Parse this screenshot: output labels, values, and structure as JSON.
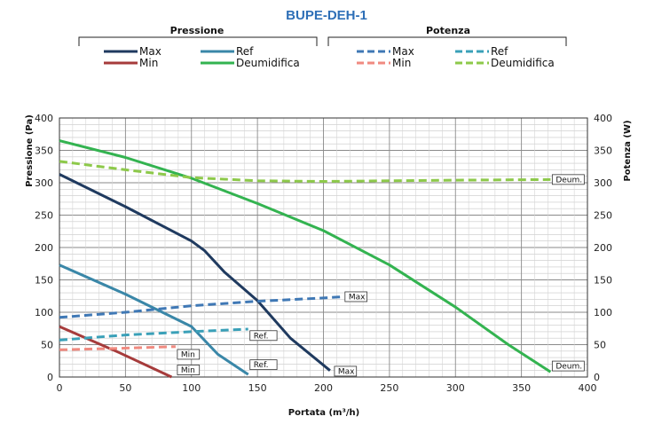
{
  "chart_data": {
    "type": "line",
    "title": "BUPE-DEH-1",
    "legend": {
      "groups": [
        "Pressione",
        "Potenza"
      ],
      "pressure_entries": [
        "Max",
        "Ref",
        "Min",
        "Deumidifica"
      ],
      "power_entries": [
        "Max",
        "Ref",
        "Min",
        "Deumidifica"
      ],
      "placement": "top"
    },
    "xlabel": "Portata (m³/h)",
    "ylabel_left": "Pressione (Pa)",
    "ylabel_right": "Potenza (W)",
    "xlim": [
      0,
      400
    ],
    "ylim_left": [
      0,
      400
    ],
    "ylim_right": [
      0,
      400
    ],
    "x_ticks": [
      0,
      50,
      100,
      150,
      200,
      250,
      300,
      350,
      400
    ],
    "y_ticks": [
      0,
      50,
      100,
      150,
      200,
      250,
      300,
      350,
      400
    ],
    "grid": true,
    "series": [
      {
        "name": "Max",
        "group": "Pressione",
        "color": "#1f3a5f",
        "dash": false,
        "points": [
          [
            0,
            313
          ],
          [
            50,
            263
          ],
          [
            100,
            210
          ],
          [
            110,
            195
          ],
          [
            125,
            162
          ],
          [
            150,
            118
          ],
          [
            175,
            60
          ],
          [
            205,
            10
          ]
        ]
      },
      {
        "name": "Ref",
        "group": "Pressione",
        "color": "#3a87a8",
        "dash": false,
        "points": [
          [
            0,
            173
          ],
          [
            50,
            128
          ],
          [
            80,
            98
          ],
          [
            100,
            78
          ],
          [
            120,
            35
          ],
          [
            143,
            4
          ]
        ]
      },
      {
        "name": "Min",
        "group": "Pressione",
        "color": "#a63b3b",
        "dash": false,
        "points": [
          [
            0,
            78
          ],
          [
            45,
            38
          ],
          [
            85,
            0
          ]
        ]
      },
      {
        "name": "Deumidifica",
        "group": "Pressione",
        "color": "#33b350",
        "dash": false,
        "points": [
          [
            0,
            365
          ],
          [
            50,
            339
          ],
          [
            100,
            307
          ],
          [
            150,
            268
          ],
          [
            200,
            226
          ],
          [
            250,
            173
          ],
          [
            300,
            108
          ],
          [
            340,
            50
          ],
          [
            372,
            8
          ]
        ]
      },
      {
        "name": "Max",
        "group": "Potenza",
        "color": "#3f78b5",
        "dash": true,
        "points": [
          [
            0,
            92
          ],
          [
            50,
            100
          ],
          [
            100,
            110
          ],
          [
            150,
            117
          ],
          [
            200,
            122
          ],
          [
            215,
            124
          ]
        ]
      },
      {
        "name": "Ref",
        "group": "Potenza",
        "color": "#3aa0b8",
        "dash": true,
        "points": [
          [
            0,
            57
          ],
          [
            50,
            65
          ],
          [
            100,
            70
          ],
          [
            143,
            74
          ]
        ]
      },
      {
        "name": "Min",
        "group": "Potenza",
        "color": "#f08a80",
        "dash": true,
        "points": [
          [
            0,
            42
          ],
          [
            40,
            44
          ],
          [
            88,
            47
          ]
        ]
      },
      {
        "name": "Deumidifica",
        "group": "Potenza",
        "color": "#8dc94a",
        "dash": true,
        "points": [
          [
            0,
            333
          ],
          [
            50,
            320
          ],
          [
            100,
            308
          ],
          [
            150,
            303
          ],
          [
            200,
            302
          ],
          [
            250,
            303
          ],
          [
            300,
            304
          ],
          [
            372,
            305
          ]
        ]
      }
    ],
    "annotations": [
      {
        "text": "Deum.",
        "x": 372,
        "y": 305
      },
      {
        "text": "Max",
        "x": 215,
        "y": 124
      },
      {
        "text": "Ref.",
        "x": 143,
        "y": 64
      },
      {
        "text": "Min",
        "x": 88,
        "y": 35
      },
      {
        "text": "Min",
        "x": 88,
        "y": 11
      },
      {
        "text": "Ref.",
        "x": 143,
        "y": 19
      },
      {
        "text": "Max",
        "x": 207,
        "y": 9
      },
      {
        "text": "Deum.",
        "x": 372,
        "y": 17
      }
    ]
  }
}
